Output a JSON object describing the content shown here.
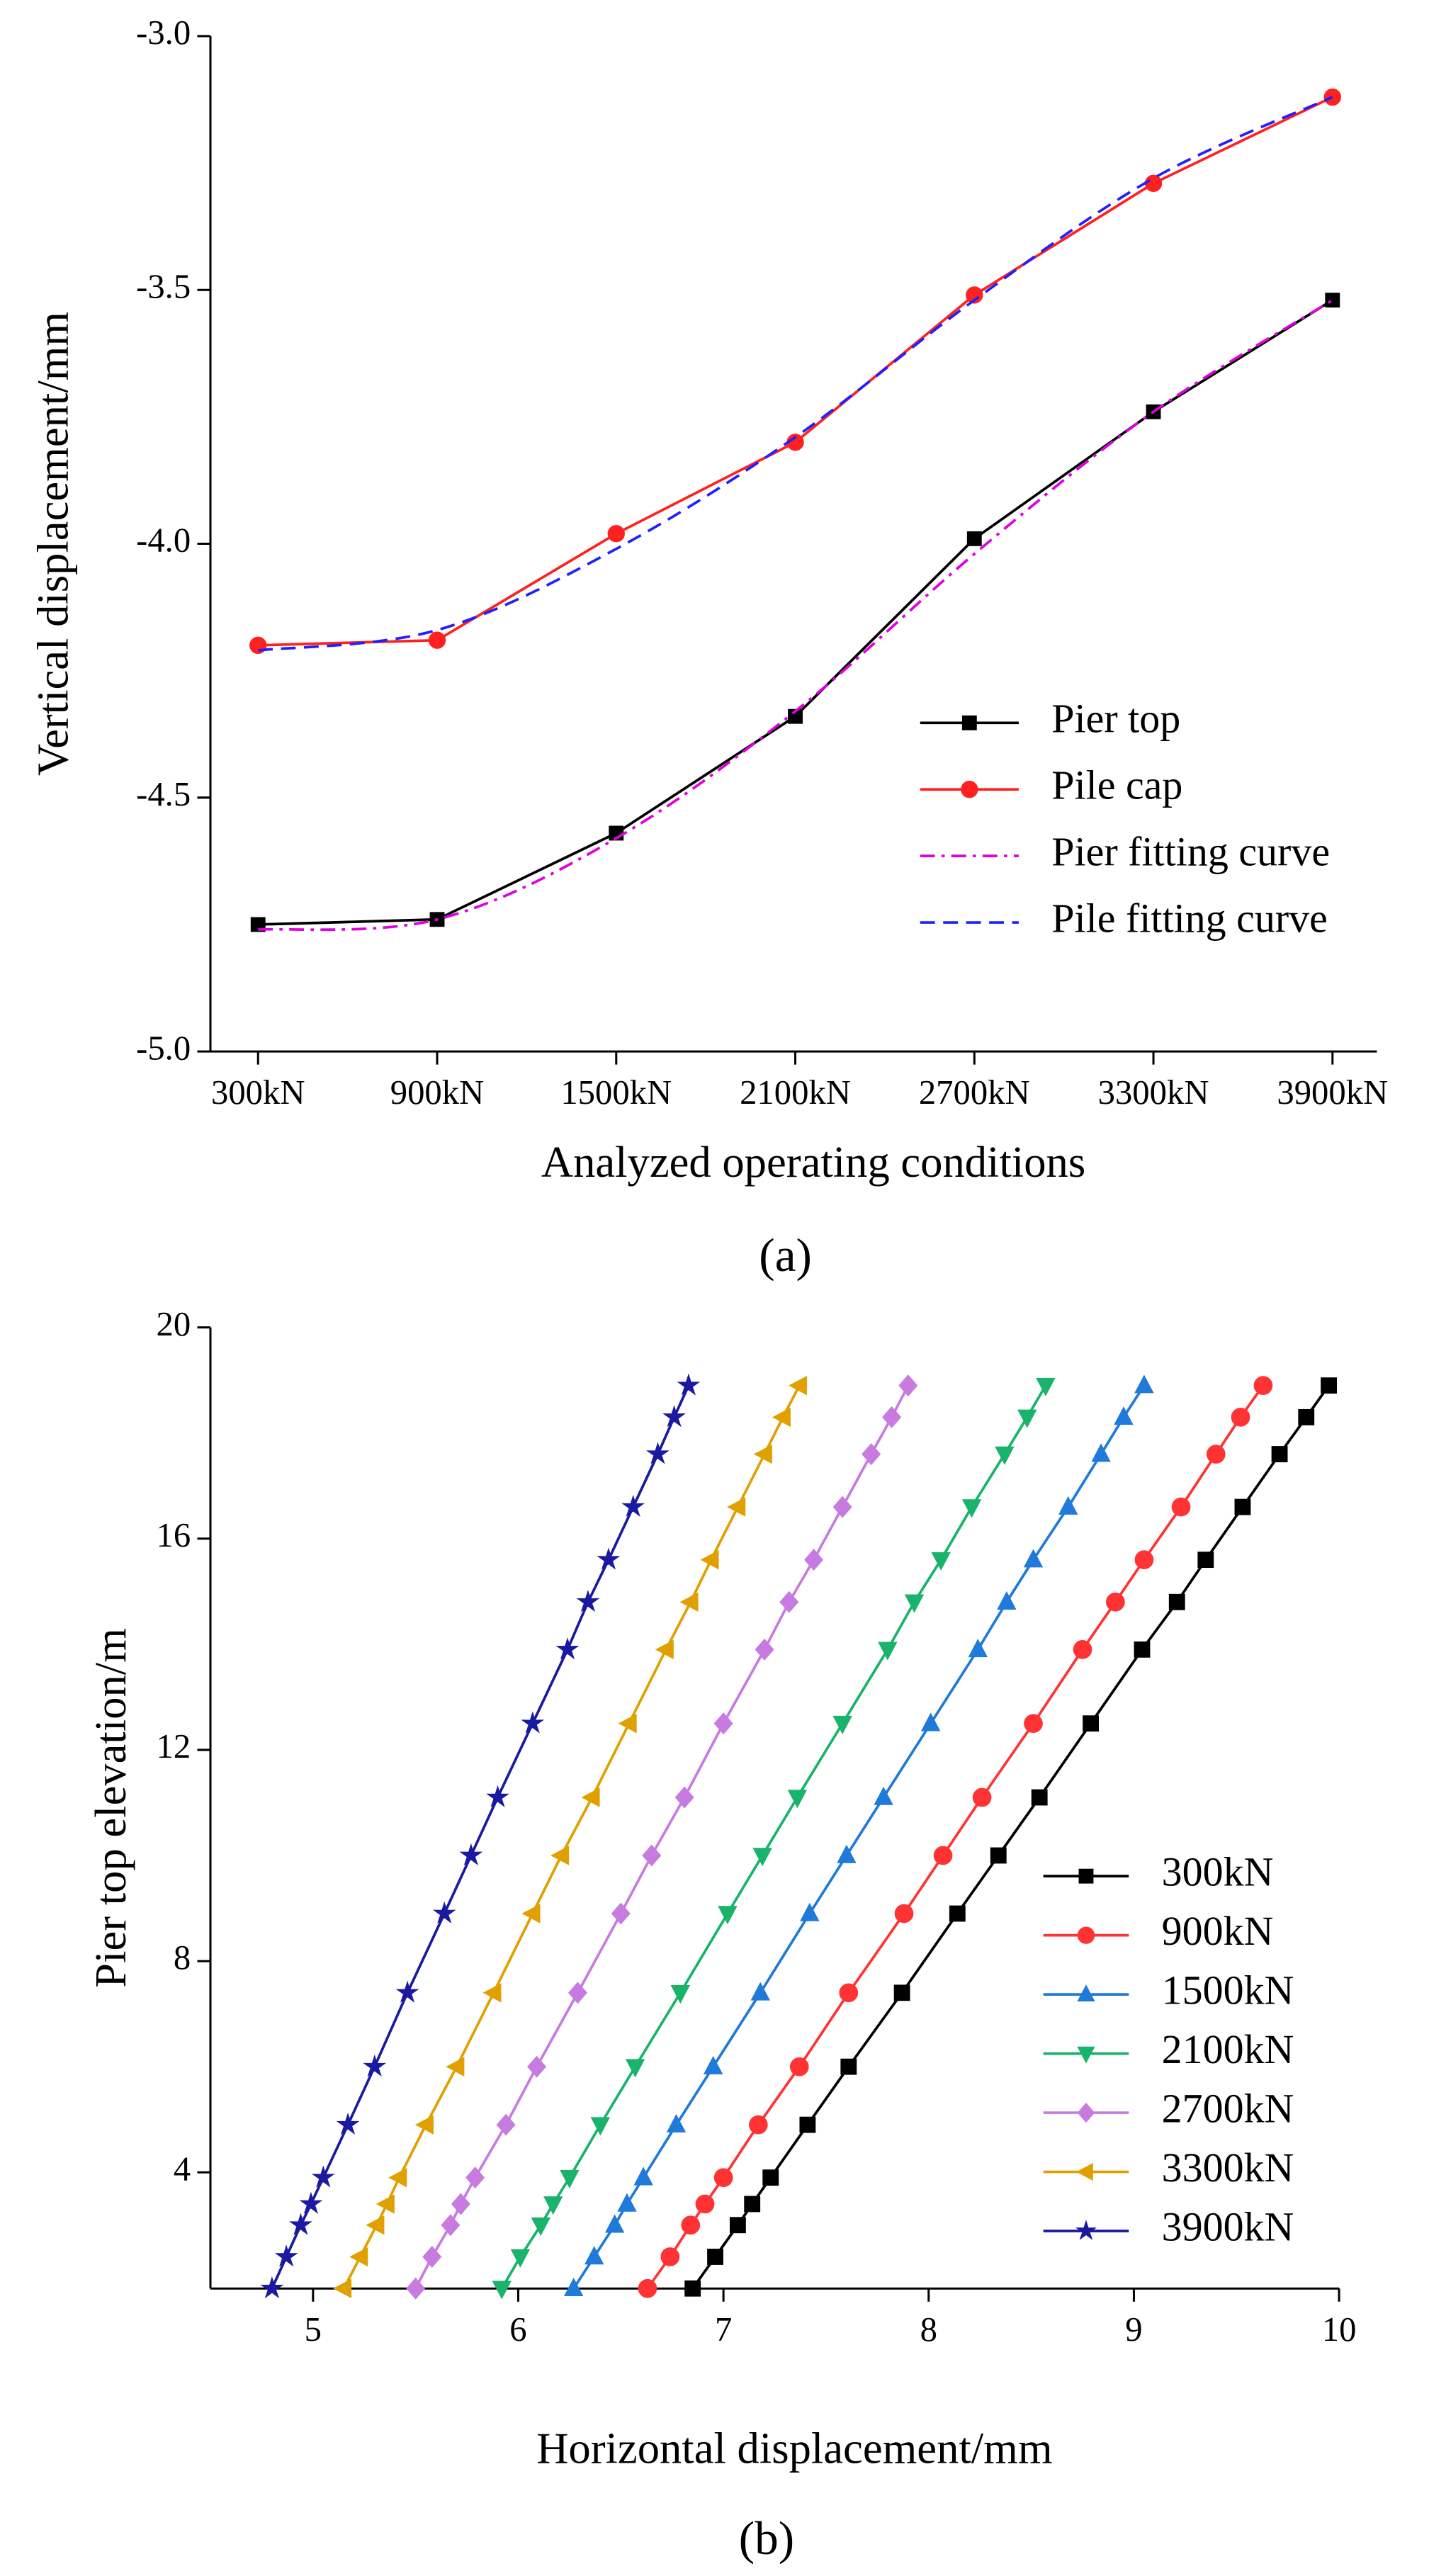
{
  "chart_data": [
    {
      "type": "line",
      "label": "(a)",
      "x_label": "Analyzed operating conditions",
      "y_label": "Vertical displacement/mm",
      "categories": [
        "300kN",
        "900kN",
        "1500kN",
        "2100kN",
        "2700kN",
        "3300kN",
        "3900kN"
      ],
      "ylim": [
        -5,
        -3
      ],
      "yticks": [
        {
          "value": -5,
          "label": "-5.0"
        },
        -4.5,
        {
          "value": -4,
          "label": "-4.0"
        },
        -3.5,
        {
          "value": -3,
          "label": "-3.0"
        }
      ],
      "legend": "lower right",
      "series": [
        {
          "name": "Pier top",
          "color": "#000000",
          "marker": "square",
          "style": "solid",
          "values": [
            -4.75,
            -4.74,
            -4.57,
            -4.34,
            -3.99,
            -3.74,
            -3.52
          ]
        },
        {
          "name": "Pile cap",
          "color": "#ff2020",
          "marker": "circle",
          "style": "solid",
          "values": [
            -4.2,
            -4.19,
            -3.98,
            -3.8,
            -3.51,
            -3.29,
            -3.12
          ]
        },
        {
          "name": "Pier fitting curve",
          "color": "#e000e0",
          "marker": "none",
          "style": "dash-dot",
          "values": [
            -4.76,
            -4.74,
            -4.58,
            -4.33,
            -4.02,
            -3.74,
            -3.52
          ]
        },
        {
          "name": "Pile fitting curve",
          "color": "#2020ff",
          "marker": "none",
          "style": "dashed",
          "values": [
            -4.21,
            -4.17,
            -4.01,
            -3.79,
            -3.52,
            -3.28,
            -3.12
          ]
        }
      ]
    },
    {
      "type": "line",
      "label": "(b)",
      "x_label": "Horizontal displacement/mm",
      "y_label": "Pier top elevation/m",
      "xlim": [
        4.5,
        10
      ],
      "xticks": [
        5,
        6,
        7,
        8,
        9,
        10
      ],
      "ylim": [
        1.8,
        20
      ],
      "yticks": [
        4,
        8,
        12,
        16,
        20
      ],
      "legend": "lower right",
      "series": [
        {
          "name": "300kN",
          "color": "#000000",
          "marker": "square",
          "style": "solid",
          "x": [
            6.85,
            6.96,
            7.07,
            7.14,
            7.23,
            7.41,
            7.61,
            7.87,
            8.14,
            8.34,
            8.54,
            8.79,
            9.04,
            9.21,
            9.35,
            9.53,
            9.71,
            9.84,
            9.95
          ],
          "values": [
            1.8,
            2.4,
            3.0,
            3.4,
            3.9,
            4.9,
            6.0,
            7.4,
            8.9,
            10.0,
            11.1,
            12.5,
            13.9,
            14.8,
            15.6,
            16.6,
            17.6,
            18.3,
            18.9
          ]
        },
        {
          "name": "900kN",
          "color": "#ff3333",
          "marker": "circle",
          "style": "solid",
          "x": [
            6.63,
            6.74,
            6.84,
            6.91,
            7.0,
            7.17,
            7.37,
            7.61,
            7.88,
            8.07,
            8.26,
            8.51,
            8.75,
            8.91,
            9.05,
            9.23,
            9.4,
            9.52,
            9.63
          ],
          "values": [
            1.8,
            2.4,
            3.0,
            3.4,
            3.9,
            4.9,
            6.0,
            7.4,
            8.9,
            10.0,
            11.1,
            12.5,
            13.9,
            14.8,
            15.6,
            16.6,
            17.6,
            18.3,
            18.9
          ]
        },
        {
          "name": "1500kN",
          "color": "#1f7ad9",
          "marker": "triangle-up",
          "style": "solid",
          "x": [
            6.27,
            6.37,
            6.47,
            6.53,
            6.61,
            6.77,
            6.95,
            7.18,
            7.42,
            7.6,
            7.78,
            8.01,
            8.24,
            8.38,
            8.51,
            8.68,
            8.84,
            8.95,
            9.05
          ],
          "values": [
            1.8,
            2.4,
            3.0,
            3.4,
            3.9,
            4.9,
            6.0,
            7.4,
            8.9,
            10.0,
            11.1,
            12.5,
            13.9,
            14.8,
            15.6,
            16.6,
            17.6,
            18.3,
            18.9
          ]
        },
        {
          "name": "2100kN",
          "color": "#19b36b",
          "marker": "triangle-down",
          "style": "solid",
          "x": [
            5.92,
            6.01,
            6.11,
            6.17,
            6.25,
            6.4,
            6.57,
            6.79,
            7.02,
            7.19,
            7.36,
            7.58,
            7.8,
            7.93,
            8.06,
            8.21,
            8.37,
            8.48,
            8.57
          ],
          "values": [
            1.8,
            2.4,
            3.0,
            3.4,
            3.9,
            4.9,
            6.0,
            7.4,
            8.9,
            10.0,
            11.1,
            12.5,
            13.9,
            14.8,
            15.6,
            16.6,
            17.6,
            18.3,
            18.9
          ]
        },
        {
          "name": "2700kN",
          "color": "#c77be0",
          "marker": "diamond",
          "style": "solid",
          "x": [
            5.5,
            5.58,
            5.67,
            5.72,
            5.79,
            5.94,
            6.09,
            6.29,
            6.5,
            6.65,
            6.81,
            7.0,
            7.2,
            7.32,
            7.44,
            7.58,
            7.72,
            7.82,
            7.9
          ],
          "values": [
            1.8,
            2.4,
            3.0,
            3.4,
            3.9,
            4.9,
            6.0,
            7.4,
            8.9,
            10.0,
            11.1,
            12.5,
            13.9,
            14.8,
            15.6,
            16.6,
            17.6,
            18.3,
            18.9
          ]
        },
        {
          "name": "3300kN",
          "color": "#e0a000",
          "marker": "triangle-left",
          "style": "solid",
          "x": [
            5.15,
            5.23,
            5.31,
            5.36,
            5.42,
            5.55,
            5.7,
            5.88,
            6.07,
            6.21,
            6.36,
            6.54,
            6.72,
            6.84,
            6.94,
            7.07,
            7.2,
            7.29,
            7.37
          ],
          "values": [
            1.8,
            2.4,
            3.0,
            3.4,
            3.9,
            4.9,
            6.0,
            7.4,
            8.9,
            10.0,
            11.1,
            12.5,
            13.9,
            14.8,
            15.6,
            16.6,
            17.6,
            18.3,
            18.9
          ]
        },
        {
          "name": "3900kN",
          "color": "#1a1aa0",
          "marker": "star",
          "style": "solid",
          "x": [
            4.8,
            4.87,
            4.94,
            4.99,
            5.05,
            5.17,
            5.3,
            5.46,
            5.64,
            5.77,
            5.9,
            6.07,
            6.24,
            6.34,
            6.44,
            6.56,
            6.68,
            6.76,
            6.83
          ],
          "values": [
            1.8,
            2.4,
            3.0,
            3.4,
            3.9,
            4.9,
            6.0,
            7.4,
            8.9,
            10.0,
            11.1,
            12.5,
            13.9,
            14.8,
            15.6,
            16.6,
            17.6,
            18.3,
            18.9
          ]
        }
      ]
    }
  ]
}
